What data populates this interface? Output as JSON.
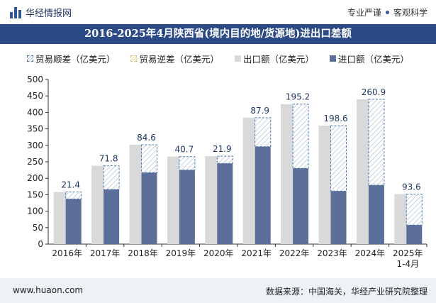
{
  "header": {
    "brand": "华经情报网",
    "tag1": "专业严谨",
    "tag2": "客观科学"
  },
  "title": "2016-2025年4月陕西省(境内目的地/货源地)进出口差额",
  "legend": [
    {
      "label": "贸易顺差（亿美元）",
      "style": "hatch"
    },
    {
      "label": "贸易逆差（亿美元）",
      "style": "hatch-yellow"
    },
    {
      "label": "出口额（亿美元）",
      "style": "solid-light"
    },
    {
      "label": "进口额（亿美元）",
      "style": "solid-dark"
    }
  ],
  "footer": {
    "website": "www.huaon.com",
    "source": "数据来源：中国海关，华经产业研究院整理"
  },
  "colors": {
    "export": "#d9d9d9",
    "import": "#5b6f9a",
    "surplus_border": "#4f7cae",
    "title_bg": "#2c4a86"
  },
  "chart_data": {
    "type": "bar",
    "categories": [
      "2016年",
      "2017年",
      "2018年",
      "2019年",
      "2020年",
      "2021年",
      "2022年",
      "2023年",
      "2024年",
      "2025年\n1-4月"
    ],
    "series": [
      {
        "name": "出口额（亿美元）",
        "values": [
          158,
          238,
          302,
          266,
          267,
          384,
          425,
          360,
          440,
          152
        ]
      },
      {
        "name": "进口额（亿美元）",
        "values": [
          137,
          166,
          217,
          225,
          245,
          296,
          230,
          161,
          179,
          58
        ]
      },
      {
        "name": "贸易顺差（亿美元）",
        "values": [
          21.4,
          71.8,
          84.6,
          40.7,
          21.9,
          87.9,
          195.2,
          198.6,
          260.9,
          93.6
        ]
      }
    ],
    "ylim": [
      0,
      500
    ],
    "yticks": [
      0,
      50,
      100,
      150,
      200,
      250,
      300,
      350,
      400,
      450,
      500
    ],
    "grid": false
  }
}
